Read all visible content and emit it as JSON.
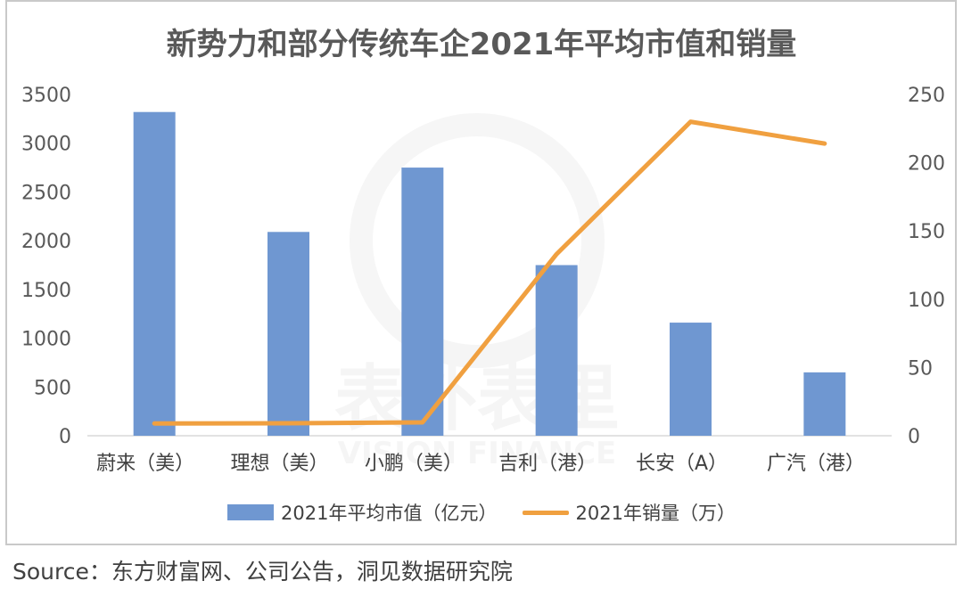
{
  "title": "新势力和部分传统车企2021年平均市值和销量",
  "source": "Source：东方财富网、公司公告，洞见数据研究院",
  "watermark": {
    "text": "表外表里",
    "subtext": "VISION FINANCE"
  },
  "legend": {
    "bar_label": "2021年平均市值（亿元）",
    "line_label": "2021年销量（万）"
  },
  "colors": {
    "bar": "#6f97d1",
    "line": "#f0a040",
    "axis_text": "#595959",
    "grid": "#d9d9d9"
  },
  "chart_data": {
    "type": "bar",
    "categories": [
      "蔚来（美）",
      "理想（美）",
      "小鹏（美）",
      "吉利（港）",
      "长安（A）",
      "广汽（港）"
    ],
    "series": [
      {
        "name": "2021年平均市值（亿元）",
        "type": "bar",
        "axis": "left",
        "values": [
          3320,
          2090,
          2750,
          1750,
          1160,
          650
        ]
      },
      {
        "name": "2021年销量（万）",
        "type": "line",
        "axis": "right",
        "values": [
          9,
          9.1,
          9.8,
          133,
          230,
          214
        ]
      }
    ],
    "y_left": {
      "min": 0,
      "max": 3500,
      "ticks": [
        0,
        500,
        1000,
        1500,
        2000,
        2500,
        3000,
        3500
      ]
    },
    "y_right": {
      "min": 0,
      "max": 250,
      "ticks": [
        0,
        50,
        100,
        150,
        200,
        250
      ]
    },
    "grid": false,
    "legend_position": "bottom"
  }
}
